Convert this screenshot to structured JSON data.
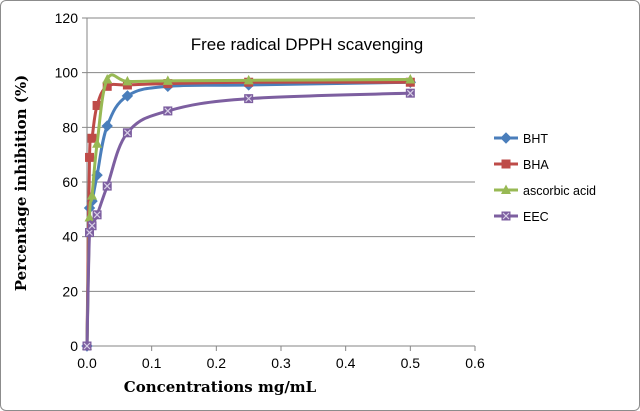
{
  "chart_data": {
    "type": "line",
    "title": "Free radical DPPH scavenging",
    "xlabel": "Concentrations mg/mL",
    "ylabel": "Percentage inhibition (%)",
    "xlim": [
      0,
      0.6
    ],
    "ylim": [
      0,
      120
    ],
    "x_ticks": [
      0,
      0.1,
      0.2,
      0.3,
      0.4,
      0.5,
      0.6
    ],
    "x_tick_labels": [
      "0.0",
      "0.1",
      "0.2",
      "0.3",
      "0.4",
      "0.5",
      "0.6"
    ],
    "y_ticks": [
      0,
      20,
      40,
      60,
      80,
      100,
      120
    ],
    "y_tick_labels": [
      "0",
      "20",
      "40",
      "60",
      "80",
      "100",
      "120"
    ],
    "grid": "horizontal",
    "legend_position": "right",
    "x": [
      0,
      0.0039,
      0.0078,
      0.0156,
      0.03125,
      0.0625,
      0.125,
      0.25,
      0.5
    ],
    "series": [
      {
        "name": "BHT",
        "color": "#4a7ebb",
        "marker": "diamond",
        "values": [
          0,
          50.5,
          53,
          62.5,
          80.5,
          91.5,
          95,
          95.5,
          96.5
        ]
      },
      {
        "name": "BHA",
        "color": "#be4b48",
        "marker": "square",
        "values": [
          0,
          69,
          76,
          88,
          95,
          95.5,
          96,
          96.5,
          96.5
        ]
      },
      {
        "name": "ascorbic acid",
        "color": "#98b954",
        "marker": "triangle",
        "values": [
          0,
          47,
          55,
          74,
          97.5,
          96.8,
          97,
          97.2,
          97.5
        ]
      },
      {
        "name": "EEC",
        "color": "#7d5fa0",
        "marker": "cross",
        "values": [
          0,
          41.5,
          44,
          48,
          58.5,
          78,
          86,
          90.5,
          92.5
        ]
      }
    ]
  }
}
